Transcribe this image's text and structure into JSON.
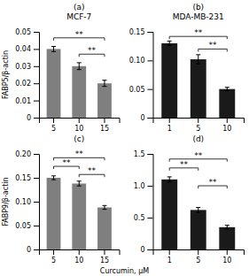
{
  "chart_data": [
    {
      "type": "bar",
      "title": "(a)",
      "subtitle": "MCF-7",
      "color": "#7f7f7f",
      "categories": [
        "5",
        "10",
        "15"
      ],
      "values": [
        0.04,
        0.03,
        0.02
      ],
      "errors": [
        0.0015,
        0.002,
        0.0018
      ],
      "ylim": [
        0,
        0.05
      ],
      "yticks": [
        0,
        0.01,
        0.02,
        0.03,
        0.04,
        0.05
      ],
      "ylabel": "FABP5/β-actin",
      "annotations": [
        {
          "text": "**",
          "from": "5",
          "to": "15",
          "y": 0.0465
        },
        {
          "text": "**",
          "from": "10",
          "to": "15",
          "y": 0.037
        }
      ]
    },
    {
      "type": "bar",
      "title": "(b)",
      "subtitle": "MDA-MB-231",
      "color": "#1a1a1a",
      "categories": [
        "1",
        "5",
        "10"
      ],
      "values": [
        0.13,
        0.102,
        0.05
      ],
      "errors": [
        0.004,
        0.008,
        0.003
      ],
      "ylim": [
        0,
        0.15
      ],
      "yticks": [
        0,
        0.05,
        {
          "value": 0.1,
          "label": "0.10"
        },
        0.15
      ],
      "annotations": [
        {
          "text": "**",
          "from": "1",
          "to": "10",
          "y": 0.142
        },
        {
          "text": "**",
          "from": "5",
          "to": "10",
          "y": 0.12
        }
      ]
    },
    {
      "type": "bar",
      "title": "(c)",
      "color": "#7f7f7f",
      "categories": [
        "5",
        "10",
        "15"
      ],
      "values": [
        0.15,
        0.138,
        0.088
      ],
      "errors": [
        0.004,
        0.005,
        0.004
      ],
      "ylim": [
        0,
        0.2
      ],
      "yticks": [
        0,
        0.05,
        {
          "value": 0.1,
          "label": "0.10"
        },
        0.15,
        {
          "value": 0.2,
          "label": "0.20"
        }
      ],
      "ylabel": "FABP9/β-actin",
      "xlabel": "Curcumin, μM",
      "annotations": [
        {
          "text": "**",
          "from": "5",
          "to": "15",
          "y": 0.192
        },
        {
          "text": "**",
          "from": "5",
          "to": "10",
          "y": 0.174
        },
        {
          "text": "**",
          "from": "10",
          "to": "15",
          "y": 0.157
        }
      ]
    },
    {
      "type": "bar",
      "title": "(d)",
      "color": "#1a1a1a",
      "categories": [
        "1",
        "5",
        "10"
      ],
      "values": [
        1.1,
        0.62,
        0.35
      ],
      "errors": [
        0.04,
        0.04,
        0.03
      ],
      "ylim": [
        0,
        1.5
      ],
      "yticks": [
        0,
        0.5,
        {
          "value": 1.0,
          "label": "1.0"
        },
        1.5
      ],
      "annotations": [
        {
          "text": "**",
          "from": "1",
          "to": "10",
          "y": 1.42
        },
        {
          "text": "**",
          "from": "1",
          "to": "5",
          "y": 1.28
        },
        {
          "text": "**",
          "from": "5",
          "to": "10",
          "y": 1.0
        }
      ]
    }
  ]
}
